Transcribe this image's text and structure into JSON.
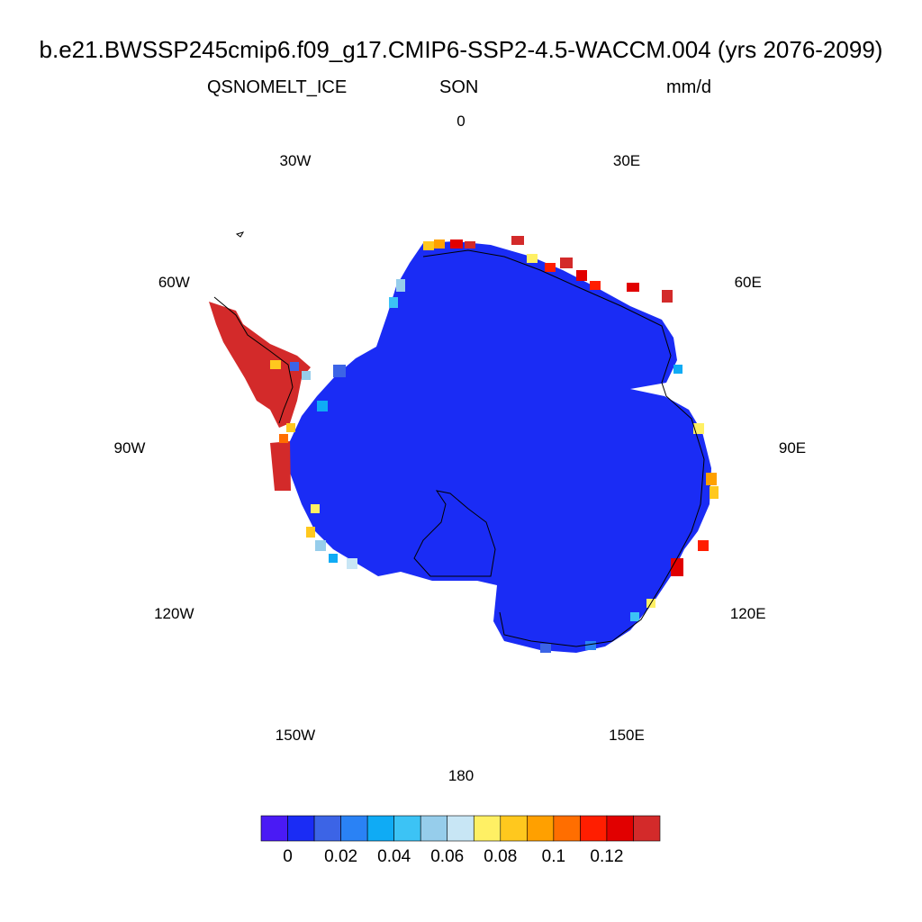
{
  "header": {
    "title": "b.e21.BWSSP245cmip6.f09_g17.CMIP6-SSP2-4.5-WACCM.004 (yrs 2076-2099)",
    "variable": "QSNOMELT_ICE",
    "season": "SON",
    "units": "mm/d"
  },
  "map": {
    "projection": "south polar stereographic",
    "lon_labels": [
      "0",
      "30E",
      "60E",
      "90E",
      "120E",
      "150E",
      "180",
      "150W",
      "120W",
      "90W",
      "60W",
      "30W"
    ],
    "dominant_color": "#1a2cf5",
    "peninsula_color": "#d32a2a",
    "coastline_color": "#000000"
  },
  "colorbar": {
    "colors": [
      "#4a1af5",
      "#1a2cf5",
      "#3c64e6",
      "#2a82f5",
      "#0fabf5",
      "#3cc3f5",
      "#96cdeb",
      "#c8e6f5",
      "#fff064",
      "#ffc81e",
      "#ffa000",
      "#ff6e00",
      "#ff1e00",
      "#e10000",
      "#d32a2a"
    ],
    "tick_labels": [
      "0",
      "0.02",
      "0.04",
      "0.06",
      "0.08",
      "0.1",
      "0.12"
    ]
  }
}
